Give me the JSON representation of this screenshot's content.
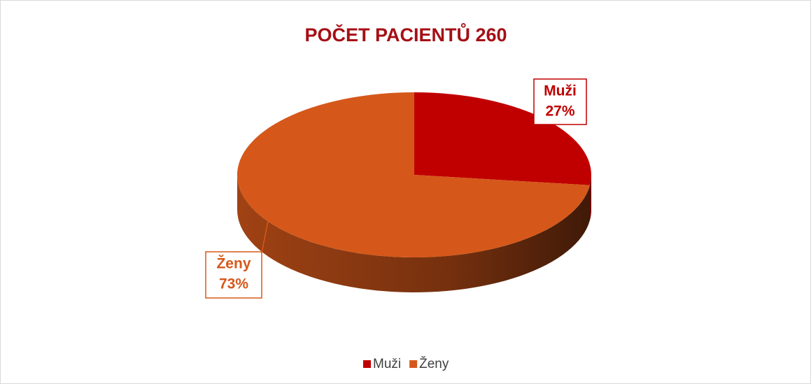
{
  "chart_data": {
    "type": "pie",
    "title": "POČET PACIENTŮ 260",
    "categories": [
      "Muži",
      "Ženy"
    ],
    "values": [
      27,
      73
    ],
    "value_labels": [
      "27%",
      "73%"
    ],
    "colors": [
      "#c00000",
      "#d5581a"
    ],
    "legend": "bottom"
  }
}
